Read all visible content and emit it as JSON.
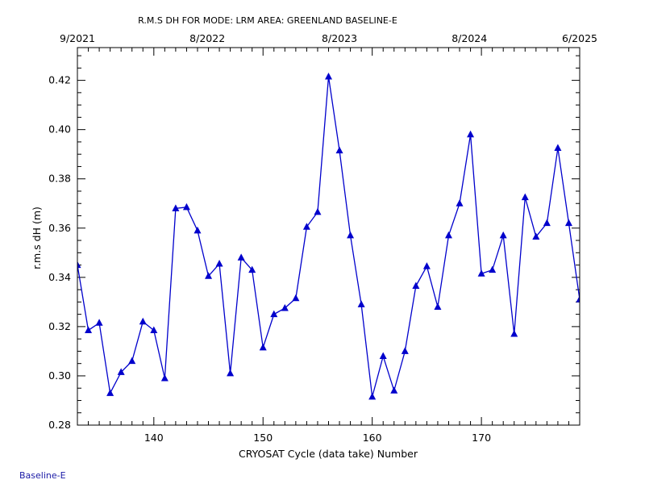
{
  "chart_data": {
    "type": "line",
    "title": "R.M.S DH FOR MODE: LRM AREA: GREENLAND BASELINE-E",
    "xlabel": "CRYOSAT Cycle (data take) Number",
    "ylabel": "r.m.s dH (m)",
    "xlim": [
      133,
      179
    ],
    "ylim": [
      0.28,
      0.4333
    ],
    "x_ticks": [
      140,
      150,
      160,
      170
    ],
    "x_tick_labels": [
      "140",
      "150",
      "160",
      "170"
    ],
    "y_ticks": [
      0.28,
      0.3,
      0.32,
      0.34,
      0.36,
      0.38,
      0.4,
      0.42
    ],
    "y_tick_labels": [
      "0.28",
      "0.30",
      "0.32",
      "0.34",
      "0.36",
      "0.38",
      "0.40",
      "0.42"
    ],
    "top_ticks": [
      {
        "cycle": 133.0,
        "label": "9/2021"
      },
      {
        "cycle": 144.9,
        "label": "8/2022"
      },
      {
        "cycle": 157.0,
        "label": "8/2023"
      },
      {
        "cycle": 168.9,
        "label": "8/2024"
      },
      {
        "cycle": 179.0,
        "label": "6/2025"
      }
    ],
    "grid": false,
    "series": [
      {
        "color": "#0000cc",
        "marker": "triangle",
        "x": [
          133,
          134,
          135,
          136,
          137,
          138,
          139,
          140,
          141,
          142,
          143,
          144,
          145,
          146,
          147,
          148,
          149,
          150,
          151,
          152,
          153,
          154,
          155,
          156,
          157,
          158,
          159,
          160,
          161,
          162,
          163,
          164,
          165,
          166,
          167,
          168,
          169,
          170,
          171,
          172,
          173,
          174,
          175,
          176,
          177,
          178,
          179
        ],
        "y": [
          0.345,
          0.3185,
          0.3215,
          0.293,
          0.3015,
          0.306,
          0.322,
          0.3185,
          0.299,
          0.368,
          0.3685,
          0.359,
          0.3405,
          0.3455,
          0.301,
          0.348,
          0.343,
          0.3115,
          0.325,
          0.3275,
          0.3315,
          0.3605,
          0.3665,
          0.4215,
          0.3915,
          0.357,
          0.329,
          0.2915,
          0.308,
          0.294,
          0.31,
          0.3365,
          0.3445,
          0.328,
          0.357,
          0.37,
          0.398,
          0.3415,
          0.343,
          0.357,
          0.317,
          0.3725,
          0.3565,
          0.362,
          0.3925,
          0.362,
          0.331
        ]
      }
    ]
  },
  "footer": {
    "label": "Baseline-E"
  }
}
